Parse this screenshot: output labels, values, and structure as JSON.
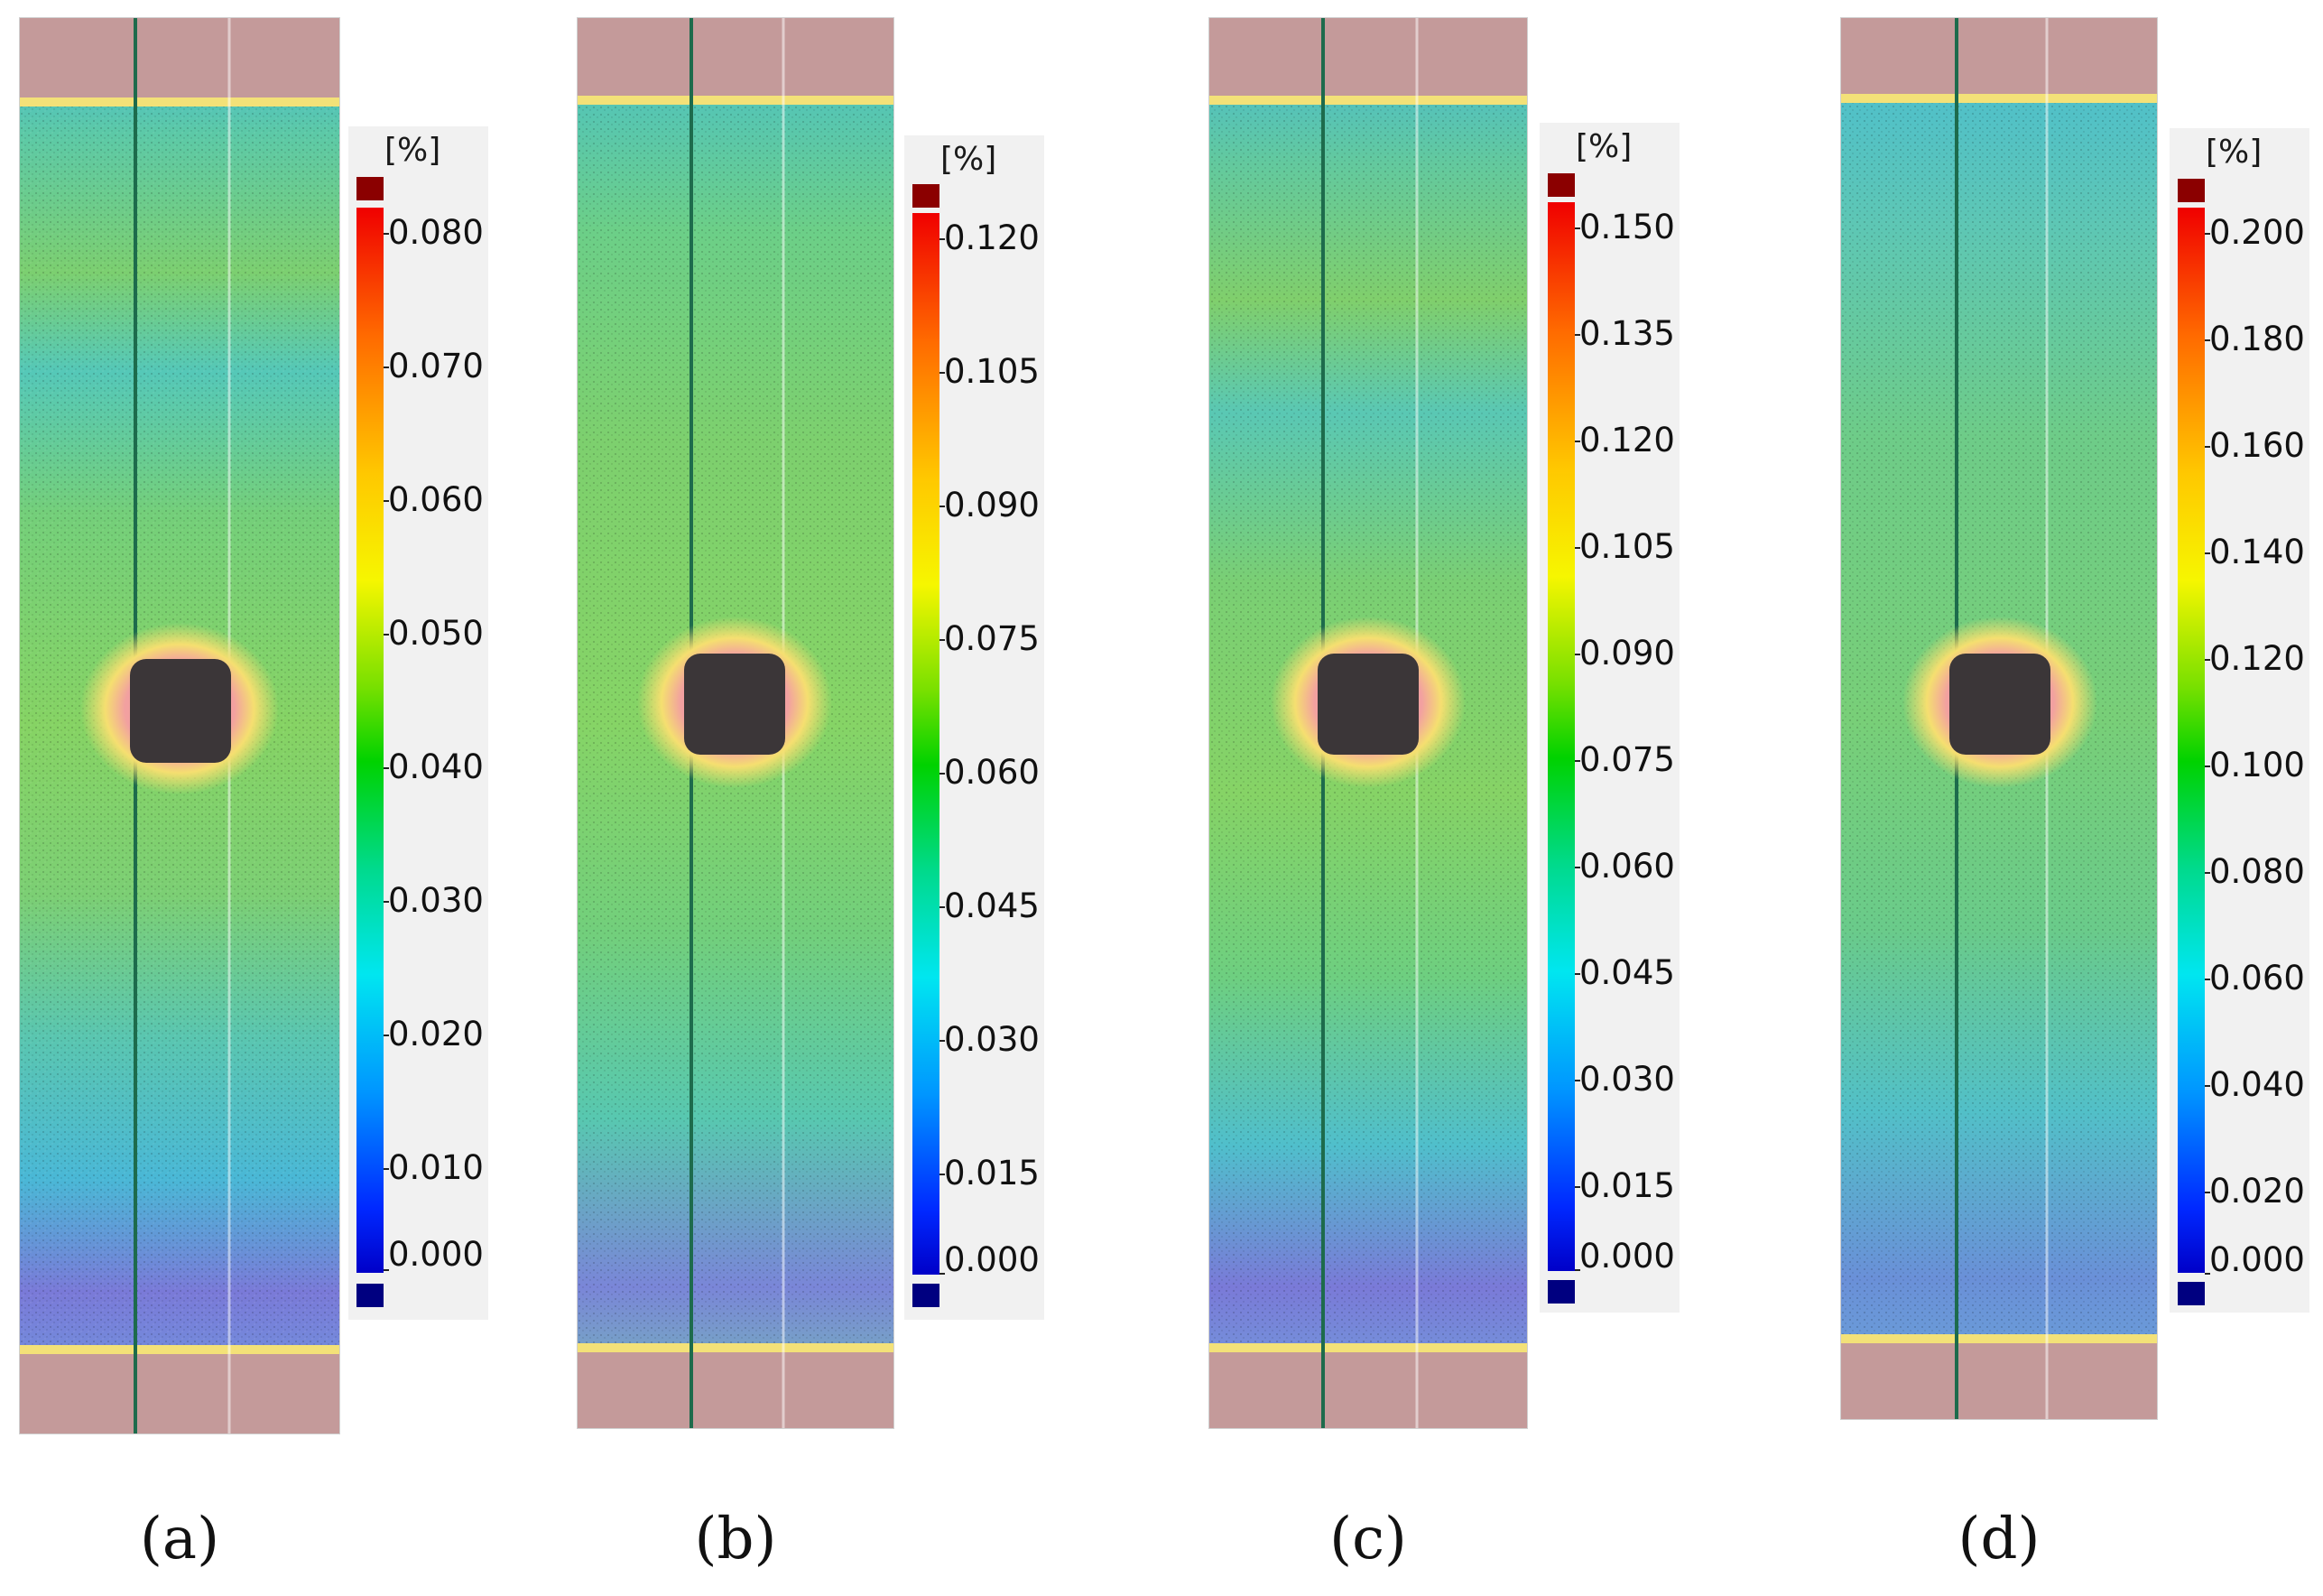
{
  "figure": {
    "unit_label": "[%]",
    "panels": [
      {
        "id": "a",
        "caption": "(a)",
        "scale": {
          "min": 0.0,
          "max": 0.08,
          "ticks": [
            "0.080",
            "0.070",
            "0.060",
            "0.050",
            "0.040",
            "0.030",
            "0.020",
            "0.010",
            "0.000"
          ]
        }
      },
      {
        "id": "b",
        "caption": "(b)",
        "scale": {
          "min": 0.0,
          "max": 0.12,
          "ticks": [
            "0.120",
            "0.105",
            "0.090",
            "0.075",
            "0.060",
            "0.045",
            "0.030",
            "0.015",
            "0.000"
          ]
        }
      },
      {
        "id": "c",
        "caption": "(c)",
        "scale": {
          "min": 0.0,
          "max": 0.15,
          "ticks": [
            "0.150",
            "0.135",
            "0.120",
            "0.105",
            "0.090",
            "0.075",
            "0.060",
            "0.045",
            "0.030",
            "0.015",
            "0.000"
          ]
        }
      },
      {
        "id": "d",
        "caption": "(d)",
        "scale": {
          "min": 0.0,
          "max": 0.2,
          "ticks": [
            "0.200",
            "0.180",
            "0.160",
            "0.140",
            "0.120",
            "0.100",
            "0.080",
            "0.060",
            "0.040",
            "0.020",
            "0.000"
          ]
        }
      }
    ],
    "colors": {
      "over_range": "#8b0000",
      "under_range": "#000080",
      "grip_region": "#c49a9a",
      "hole": "#3b3638"
    }
  }
}
